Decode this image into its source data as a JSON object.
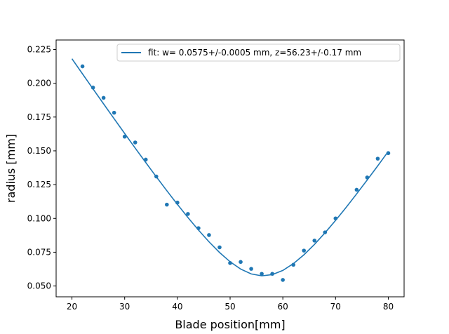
{
  "chart_data": {
    "type": "scatter",
    "title": "",
    "xlabel": "Blade position[mm]",
    "ylabel": "radius [mm]",
    "xlim": [
      17.0,
      83.0
    ],
    "ylim": [
      0.042,
      0.232
    ],
    "x_ticks": [
      20,
      30,
      40,
      50,
      60,
      70,
      80
    ],
    "y_ticks": [
      0.05,
      0.075,
      0.1,
      0.125,
      0.15,
      0.175,
      0.2,
      0.225
    ],
    "x_tick_labels": [
      "20",
      "30",
      "40",
      "50",
      "60",
      "70",
      "80"
    ],
    "y_tick_labels": [
      "0.050",
      "0.075",
      "0.100",
      "0.125",
      "0.150",
      "0.175",
      "0.200",
      "0.225"
    ],
    "grid": false,
    "legend_position": "top-right",
    "color": "#1f77b4",
    "series": [
      {
        "kind": "points",
        "x": [
          22,
          24,
          26,
          28,
          30,
          32,
          34,
          36,
          38,
          40,
          42,
          44,
          46,
          48,
          50,
          52,
          54,
          56,
          58,
          60,
          62,
          64,
          66,
          68,
          70,
          74,
          76,
          78,
          80
        ],
        "y": [
          0.2125,
          0.1968,
          0.1892,
          0.1782,
          0.1605,
          0.1562,
          0.1435,
          0.131,
          0.1102,
          0.1117,
          0.1033,
          0.0928,
          0.0877,
          0.0786,
          0.067,
          0.0678,
          0.0627,
          0.059,
          0.059,
          0.0545,
          0.0657,
          0.0762,
          0.0836,
          0.0897,
          0.1,
          0.1212,
          0.1303,
          0.1442,
          0.1483
        ]
      },
      {
        "kind": "fit",
        "name": "fit: w= 0.0575+/-0.0005 mm, z=56.23+/-0.17 mm",
        "w": 0.0575,
        "z0": 56.23,
        "zr": 9.9,
        "x_range": [
          20,
          80
        ],
        "step": 2
      }
    ]
  }
}
